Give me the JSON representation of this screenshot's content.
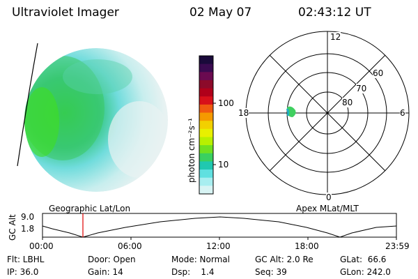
{
  "header": {
    "title": "Ultraviolet Imager",
    "date": "02 May 07",
    "time": "02:43:12 UT"
  },
  "colorbar": {
    "unit_label": "photon cm⁻²s⁻¹",
    "ticks": [
      "100",
      "10"
    ],
    "colors": [
      "#1a0a3a",
      "#3a0a50",
      "#6a0a50",
      "#8c0a2a",
      "#b0001a",
      "#d8101a",
      "#f05a10",
      "#f59a00",
      "#f2d000",
      "#e8f000",
      "#b8f000",
      "#70e020",
      "#3ad060",
      "#20c8b0",
      "#60e0e0",
      "#a8eef0",
      "#d8f4f4"
    ]
  },
  "polar": {
    "mlt_labels": {
      "top": "12",
      "left": "18",
      "right": "6",
      "bottom": "0"
    },
    "lat_labels": [
      "60",
      "70",
      "80"
    ]
  },
  "timeline": {
    "ylabel": "GC Alt",
    "ytick_top": "9.0",
    "ytick_bottom": "1.8",
    "left_caption": "Geographic Lat/Lon",
    "right_caption": "Apex MLat/MLT",
    "xticks": [
      "00:00",
      "06:00",
      "12:00",
      "18:00",
      "23:59"
    ]
  },
  "info": {
    "flt": "Flt: LBHL",
    "ip": "IP: 36.0",
    "door": "Door: Open",
    "gain": "Gain: 14",
    "mode": "Mode: Normal",
    "dsp": "Dsp:    1.4",
    "gcalt": "GC Alt: 2.0 Re",
    "seq": "Seq: 39",
    "glat": "GLat:  66.6",
    "glon": "GLon: 242.0"
  }
}
